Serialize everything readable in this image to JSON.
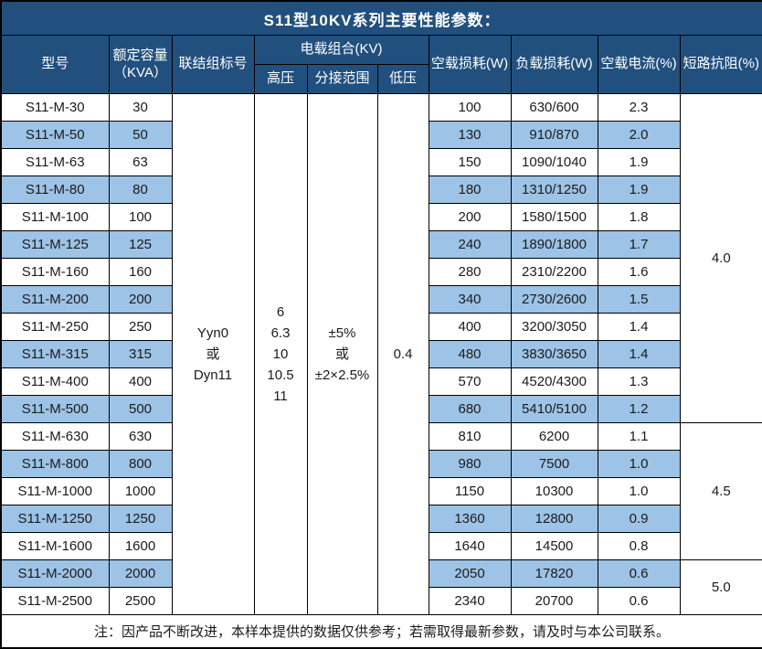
{
  "title": "S11型10KV系列主要性能参数：",
  "colors": {
    "header_bg": "#21507E",
    "stripe_bg": "#9DC3E6",
    "border": "#000000",
    "header_text": "#FFFFFF",
    "body_text": "#1B1B1B"
  },
  "header": {
    "model": "型号",
    "capacity_line1": "额定容量",
    "capacity_line2": "（KVA）",
    "vector_group": "联结组标号",
    "voltage_combo": "电载组合(KV)",
    "hv": "高压",
    "tap_range": "分接范围",
    "lv": "低压",
    "no_load_loss": "空载损耗(W)",
    "load_loss": "负载损耗(W)",
    "no_load_current": "空载电流(%)",
    "impedance": "短路抗阻(%)"
  },
  "merged": {
    "vector_group_lines": [
      "Yyn0",
      "或",
      "Dyn11"
    ],
    "hv_lines": [
      "6",
      "6.3",
      "10",
      "10.5",
      "11"
    ],
    "tap_range_lines": [
      "±5%",
      "或",
      "±2×2.5%"
    ],
    "lv_value": "0.4"
  },
  "rows": [
    {
      "model": "S11-M-30",
      "capacity": "30",
      "no_load_loss": "100",
      "load_loss": "630/600",
      "no_load_current": "2.3"
    },
    {
      "model": "S11-M-50",
      "capacity": "50",
      "no_load_loss": "130",
      "load_loss": "910/870",
      "no_load_current": "2.0"
    },
    {
      "model": "S11-M-63",
      "capacity": "63",
      "no_load_loss": "150",
      "load_loss": "1090/1040",
      "no_load_current": "1.9"
    },
    {
      "model": "S11-M-80",
      "capacity": "80",
      "no_load_loss": "180",
      "load_loss": "1310/1250",
      "no_load_current": "1.9"
    },
    {
      "model": "S11-M-100",
      "capacity": "100",
      "no_load_loss": "200",
      "load_loss": "1580/1500",
      "no_load_current": "1.8"
    },
    {
      "model": "S11-M-125",
      "capacity": "125",
      "no_load_loss": "240",
      "load_loss": "1890/1800",
      "no_load_current": "1.7"
    },
    {
      "model": "S11-M-160",
      "capacity": "160",
      "no_load_loss": "280",
      "load_loss": "2310/2200",
      "no_load_current": "1.6"
    },
    {
      "model": "S11-M-200",
      "capacity": "200",
      "no_load_loss": "340",
      "load_loss": "2730/2600",
      "no_load_current": "1.5"
    },
    {
      "model": "S11-M-250",
      "capacity": "250",
      "no_load_loss": "400",
      "load_loss": "3200/3050",
      "no_load_current": "1.4"
    },
    {
      "model": "S11-M-315",
      "capacity": "315",
      "no_load_loss": "480",
      "load_loss": "3830/3650",
      "no_load_current": "1.4"
    },
    {
      "model": "S11-M-400",
      "capacity": "400",
      "no_load_loss": "570",
      "load_loss": "4520/4300",
      "no_load_current": "1.3"
    },
    {
      "model": "S11-M-500",
      "capacity": "500",
      "no_load_loss": "680",
      "load_loss": "5410/5100",
      "no_load_current": "1.2"
    },
    {
      "model": "S11-M-630",
      "capacity": "630",
      "no_load_loss": "810",
      "load_loss": "6200",
      "no_load_current": "1.1"
    },
    {
      "model": "S11-M-800",
      "capacity": "800",
      "no_load_loss": "980",
      "load_loss": "7500",
      "no_load_current": "1.0"
    },
    {
      "model": "S11-M-1000",
      "capacity": "1000",
      "no_load_loss": "1150",
      "load_loss": "10300",
      "no_load_current": "1.0"
    },
    {
      "model": "S11-M-1250",
      "capacity": "1250",
      "no_load_loss": "1360",
      "load_loss": "12800",
      "no_load_current": "0.9"
    },
    {
      "model": "S11-M-1600",
      "capacity": "1600",
      "no_load_loss": "1640",
      "load_loss": "14500",
      "no_load_current": "0.8"
    },
    {
      "model": "S11-M-2000",
      "capacity": "2000",
      "no_load_loss": "2050",
      "load_loss": "17820",
      "no_load_current": "0.6"
    },
    {
      "model": "S11-M-2500",
      "capacity": "2500",
      "no_load_loss": "2340",
      "load_loss": "20700",
      "no_load_current": "0.6"
    }
  ],
  "impedance_groups": [
    {
      "value": "4.0",
      "span": 12
    },
    {
      "value": "4.5",
      "span": 5
    },
    {
      "value": "5.0",
      "span": 2
    }
  ],
  "footer_note": "注：因产品不断改进，本样本提供的数据仅供参考；若需取得最新参数，请及时与本公司联系。"
}
